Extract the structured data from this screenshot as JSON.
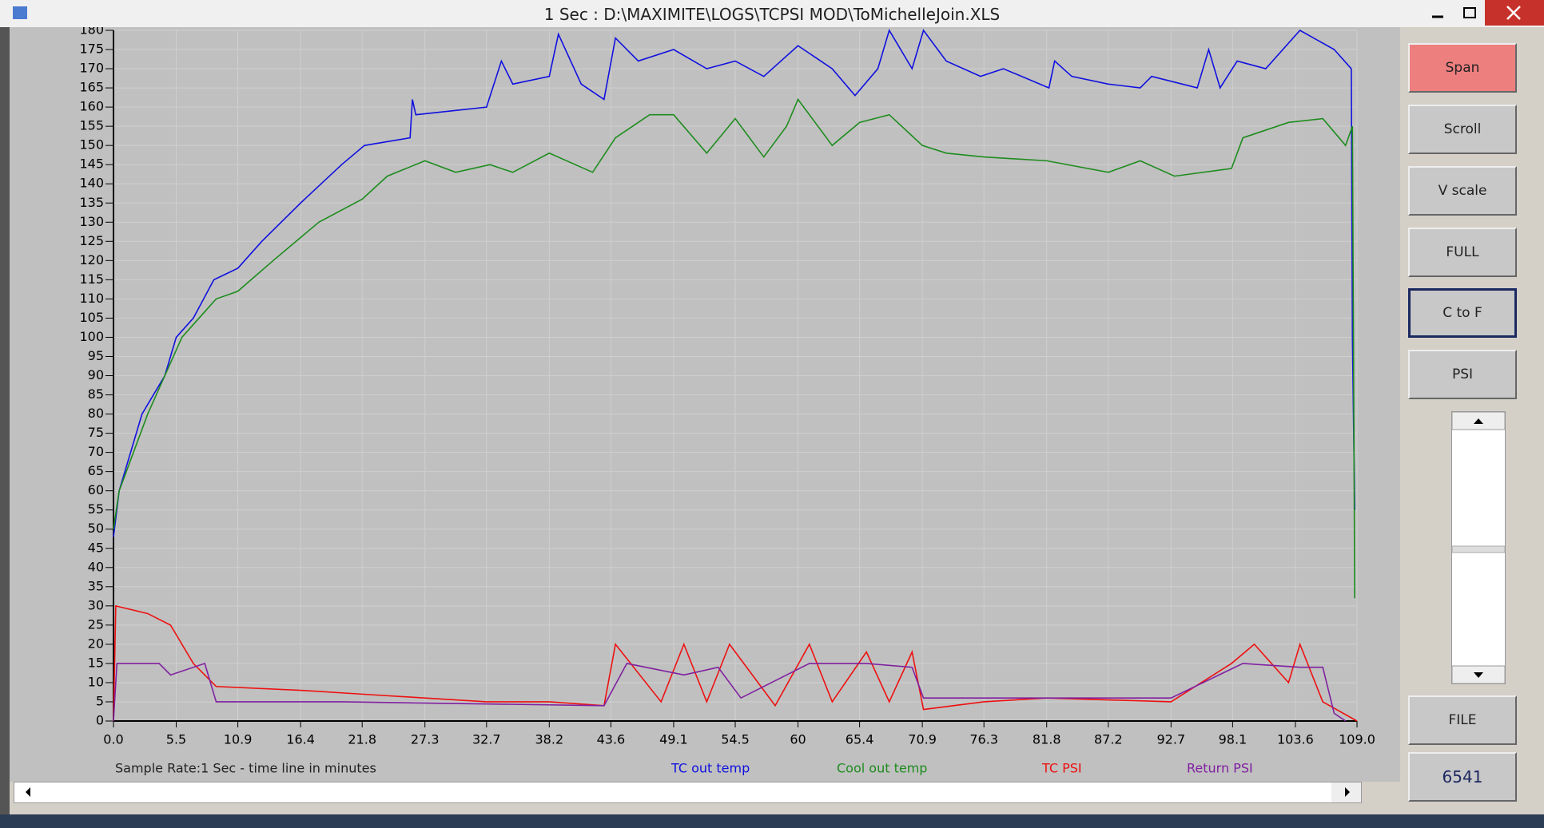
{
  "ui": {
    "title": "1 Sec : D:\\MAXIMITE\\LOGS\\TCPSI MOD\\ToMichelleJoin.XLS",
    "buttons": [
      "Span",
      "Scroll",
      "V scale",
      "FULL",
      "C to F",
      "PSI",
      "FILE",
      "6541"
    ]
  },
  "chart_data": {
    "type": "line",
    "x_label": "Sample Rate:1 Sec - time line in minutes",
    "xlim": [
      0,
      109
    ],
    "ylim": [
      0,
      180
    ],
    "grid": true,
    "xticks": [
      {
        "value": 0,
        "label": "0.0"
      },
      5.5,
      10.9,
      16.4,
      21.8,
      27.3,
      32.7,
      38.2,
      43.6,
      49.1,
      54.5,
      60.0,
      65.4,
      70.9,
      76.3,
      81.8,
      87.2,
      92.7,
      98.1,
      103.6,
      {
        "value": 109,
        "label": "109.0"
      }
    ],
    "yticks": [
      0,
      5,
      10,
      15,
      20,
      25,
      30,
      35,
      40,
      45,
      50,
      55,
      60,
      65,
      70,
      75,
      80,
      85,
      90,
      95,
      100,
      105,
      110,
      115,
      120,
      125,
      130,
      135,
      140,
      145,
      150,
      155,
      160,
      165,
      170,
      175,
      180
    ],
    "series": [
      {
        "name": "TC out temp",
        "color": "#1010e0",
        "x": [
          0,
          0.5,
          1.5,
          2.5,
          4.5,
          5.5,
          7,
          8.8,
          10.9,
          13,
          16.4,
          20,
          22,
          26,
          26.2,
          26.5,
          32.7,
          34,
          35,
          38.2,
          39,
          41,
          43,
          44,
          46,
          49.1,
          52,
          54.5,
          57,
          60,
          63,
          65,
          67,
          68,
          70,
          71,
          73,
          76,
          78,
          82,
          82.5,
          84,
          87.2,
          90,
          91,
          95,
          96,
          97,
          98.5,
          101,
          104,
          107,
          108.5,
          108.6,
          108.8
        ],
        "values": [
          48,
          60,
          70,
          80,
          90,
          100,
          105,
          115,
          118,
          125,
          135,
          145,
          150,
          152,
          162,
          158,
          160,
          172,
          166,
          168,
          179,
          166,
          162,
          178,
          172,
          175,
          170,
          172,
          168,
          176,
          170,
          163,
          170,
          180,
          170,
          180,
          172,
          168,
          170,
          165,
          172,
          168,
          166,
          165,
          168,
          165,
          175,
          165,
          172,
          170,
          180,
          175,
          170,
          100,
          55
        ]
      },
      {
        "name": "Cool out temp",
        "color": "#1e8c1e",
        "x": [
          0,
          0.5,
          3,
          6,
          9,
          10.9,
          14,
          18,
          21.8,
          24,
          27.3,
          30,
          33,
          35,
          38.2,
          42,
          44,
          47,
          49.1,
          52,
          54.5,
          57,
          59,
          60,
          63,
          65.4,
          68,
          70.9,
          73,
          76.3,
          81.8,
          87.2,
          90,
          93,
          98,
          99,
          103,
          106,
          108,
          108.6,
          108.8
        ],
        "values": [
          50,
          60,
          80,
          100,
          110,
          112,
          120,
          130,
          136,
          142,
          146,
          143,
          145,
          143,
          148,
          143,
          152,
          158,
          158,
          148,
          157,
          147,
          155,
          162,
          150,
          156,
          158,
          150,
          148,
          147,
          146,
          143,
          146,
          142,
          144,
          152,
          156,
          157,
          150,
          155,
          32
        ]
      },
      {
        "name": "TC PSI",
        "color": "#ee1010",
        "x": [
          0,
          0.2,
          3,
          5,
          7,
          9,
          16.4,
          21.8,
          27.3,
          32.7,
          38.2,
          43,
          44,
          48,
          50,
          52,
          54,
          58,
          61,
          63,
          66,
          68,
          70,
          71,
          76.3,
          81.8,
          92.7,
          98,
          100,
          103,
          104,
          106,
          109
        ],
        "values": [
          0,
          30,
          28,
          25,
          15,
          9,
          8,
          7,
          6,
          5,
          5,
          4,
          20,
          5,
          20,
          5,
          20,
          4,
          20,
          5,
          18,
          5,
          18,
          3,
          5,
          6,
          5,
          15,
          20,
          10,
          20,
          5,
          0
        ]
      },
      {
        "name": "Return PSI",
        "color": "#8020a0",
        "x": [
          0,
          0.3,
          4,
          5,
          8,
          9,
          20,
          43,
          45,
          50,
          53,
          55,
          61,
          66,
          70,
          71,
          76.3,
          92.7,
          99,
          104,
          106,
          107,
          108
        ],
        "values": [
          0,
          15,
          15,
          12,
          15,
          5,
          5,
          4,
          15,
          12,
          14,
          6,
          15,
          15,
          14,
          6,
          6,
          6,
          15,
          14,
          14,
          2,
          0
        ]
      }
    ]
  }
}
